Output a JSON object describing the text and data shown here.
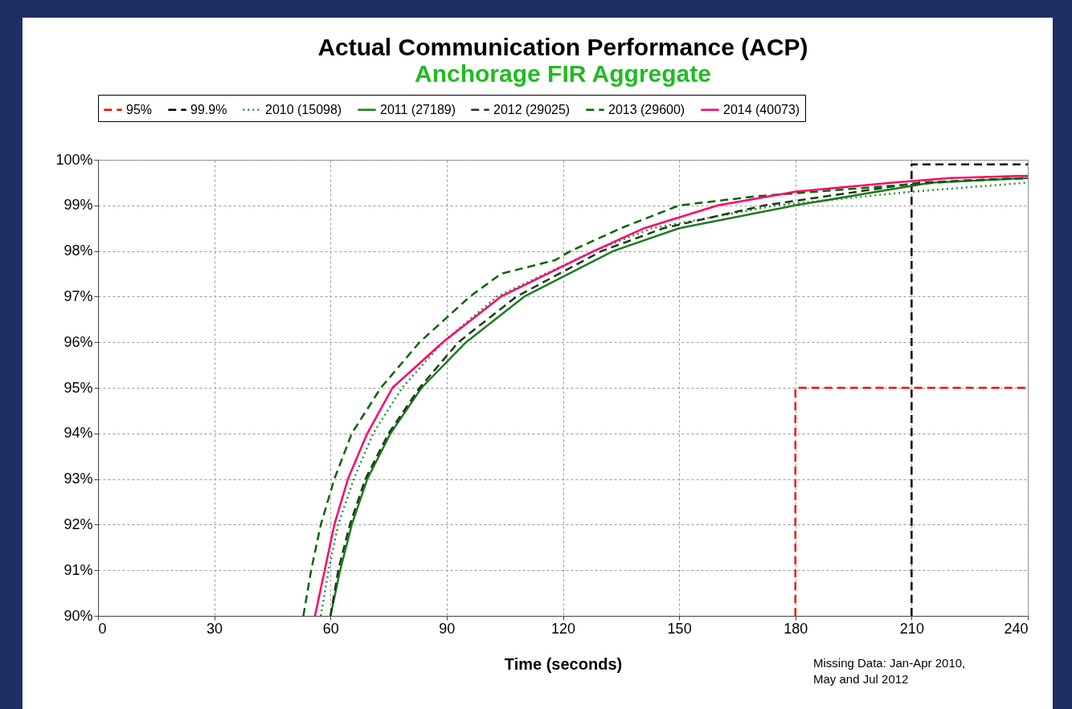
{
  "chart_data": {
    "type": "line",
    "title": "Actual Communication Performance (ACP)",
    "subtitle": "Anchorage FIR Aggregate",
    "xlabel": "Time (seconds)",
    "xlim": [
      0,
      240
    ],
    "xticks": [
      0,
      30,
      60,
      90,
      120,
      150,
      180,
      210,
      240
    ],
    "ylim": [
      90,
      100
    ],
    "yticks": [
      {
        "value": 90,
        "label": "90%"
      },
      {
        "value": 91,
        "label": "91%"
      },
      {
        "value": 92,
        "label": "92%"
      },
      {
        "value": 93,
        "label": "93%"
      },
      {
        "value": 94,
        "label": "94%"
      },
      {
        "value": 95,
        "label": "95%"
      },
      {
        "value": 96,
        "label": "96%"
      },
      {
        "value": 97,
        "label": "97%"
      },
      {
        "value": 98,
        "label": "98%"
      },
      {
        "value": 99,
        "label": "99%"
      },
      {
        "value": 100,
        "label": "100%"
      }
    ],
    "grid": true,
    "legend": "top",
    "marker": "none",
    "annotations": [
      "Missing Data: Jan-Apr 2010,",
      "May and Jul 2012"
    ],
    "series": [
      {
        "name": "95%",
        "color": "#ff0000",
        "line_style": "dashed",
        "x": [
          180,
          180,
          240
        ],
        "values": [
          90,
          95,
          95
        ]
      },
      {
        "name": "99.9%",
        "color": "#000000",
        "line_style": "dashed",
        "x": [
          210,
          210,
          240
        ],
        "values": [
          90,
          99.9,
          99.9
        ]
      },
      {
        "name": "2010 (15098)",
        "color": "#2e8b2e",
        "line_style": "dotted",
        "x": [
          57.5,
          59.5,
          62,
          66,
          71,
          78.5,
          89,
          103,
          128,
          143,
          175,
          210,
          240
        ],
        "values": [
          90,
          91,
          92,
          93,
          94,
          95,
          96,
          97,
          98,
          98.5,
          99,
          99.3,
          99.5
        ]
      },
      {
        "name": "2011 (27189)",
        "color": "#1e7b1e",
        "line_style": "solid",
        "x": [
          60,
          62.5,
          65.5,
          69.5,
          75.5,
          83.5,
          95,
          110,
          133,
          150,
          180,
          215,
          240
        ],
        "values": [
          90,
          91,
          92,
          93,
          94,
          95,
          96,
          97,
          98,
          98.5,
          99,
          99.5,
          99.6
        ]
      },
      {
        "name": "2012 (29025)",
        "color": "#1a3a1a",
        "line_style": "dashed",
        "x": [
          60,
          62,
          65,
          69,
          75,
          83,
          93,
          108,
          130,
          146,
          172,
          212,
          240
        ],
        "values": [
          90,
          91,
          92,
          93,
          94,
          95,
          96,
          97,
          98,
          98.5,
          99,
          99.5,
          99.6
        ]
      },
      {
        "name": "2013 (29600)",
        "color": "#006600",
        "line_style": "dashed",
        "x": [
          53,
          55,
          57.5,
          61,
          65.5,
          73,
          83,
          96,
          104,
          118,
          122,
          135,
          150,
          170,
          200,
          225,
          240
        ],
        "values": [
          90,
          91,
          92,
          93,
          94,
          95,
          96,
          97,
          97.5,
          97.8,
          98,
          98.5,
          99,
          99.2,
          99.4,
          99.55,
          99.6
        ]
      },
      {
        "name": "2014 (40073)",
        "color": "#ff0066",
        "line_style": "solid",
        "x": [
          56,
          58.5,
          61,
          64.5,
          69.5,
          76,
          89,
          104,
          128,
          141,
          160,
          180,
          205,
          220,
          240
        ],
        "values": [
          90,
          91,
          92,
          93,
          94,
          95,
          96,
          97,
          98,
          98.5,
          99,
          99.3,
          99.5,
          99.6,
          99.65
        ]
      }
    ]
  }
}
